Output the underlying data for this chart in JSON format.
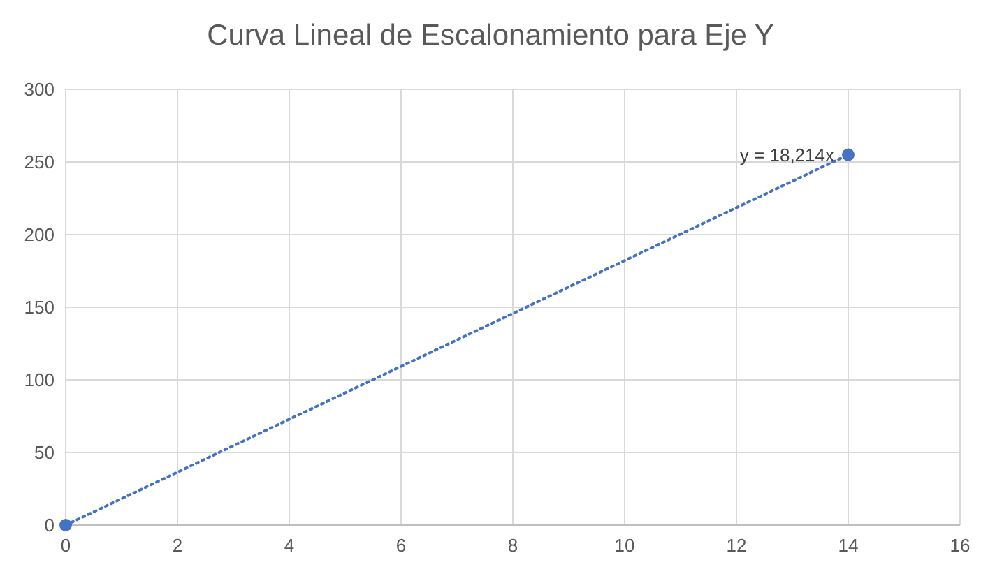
{
  "chart_data": {
    "type": "scatter",
    "title": "Curva Lineal de Escalonamiento para Eje Y",
    "x": [
      0,
      14
    ],
    "series": [
      {
        "type": "scatter",
        "color": "#4472c4",
        "values": [
          0,
          255
        ],
        "marker": "circle"
      },
      {
        "type": "line",
        "color": "#4472c4",
        "values": [
          0,
          255
        ],
        "line_style": "dotted",
        "marker": "none"
      }
    ],
    "annotations": [
      {
        "text": "y = 18,214x",
        "x": 14,
        "y": 255
      }
    ],
    "xlim": [
      0,
      16
    ],
    "xticks": [
      0,
      2,
      4,
      6,
      8,
      10,
      12,
      14,
      16
    ],
    "ylim": [
      0,
      300
    ],
    "yticks": [
      0,
      50,
      100,
      150,
      200,
      250,
      300
    ],
    "grid": true
  }
}
